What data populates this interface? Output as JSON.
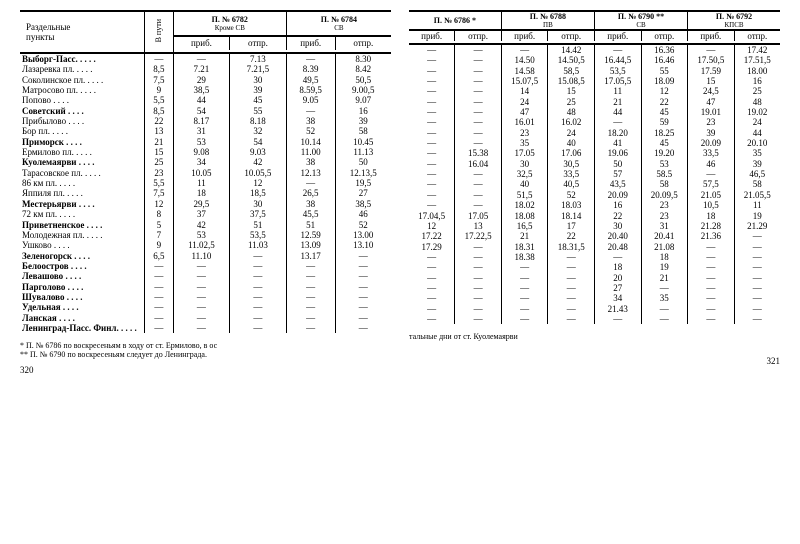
{
  "font_family": "Times New Roman",
  "text_color": "#000000",
  "background_color": "#ffffff",
  "header": {
    "stations_label": "Раздельные\nпункты",
    "time_label": "В пути",
    "arr": "приб.",
    "dep": "отпр."
  },
  "trains_left": [
    {
      "title": "П. № 6782",
      "sub": "Кроме СВ"
    },
    {
      "title": "П. № 6784",
      "sub": "СВ"
    }
  ],
  "trains_right": [
    {
      "title": "П. № 6786 *",
      "sub": ""
    },
    {
      "title": "П. № 6788",
      "sub": "ПВ"
    },
    {
      "title": "П. № 6790 **",
      "sub": "СВ"
    },
    {
      "title": "П. № 6792",
      "sub": "КПСВ"
    }
  ],
  "stations": [
    "Выборг-Пасс.",
    "Лазаревка пл.",
    "Соколинское пл.",
    "Матросово пл.",
    "Попово",
    "Советский",
    "Прибылово",
    "Бор пл.",
    "Приморск",
    "Ермилово пл.",
    "Куолемаярви",
    "Тарасовское пл.",
    "86 км пл.",
    "Яппиля пл.",
    "Местерьярви",
    "72 км пл.",
    "Приветненское",
    "Молодежная пл.",
    "Ушково",
    "Зеленогорск",
    "Белоостров",
    "Левашово",
    "Парголово",
    "Шувалово",
    "Удельная",
    "Ланская",
    "Ленинград-Пасс. Финл."
  ],
  "time_col": [
    "—",
    "8,5",
    "7,5",
    "9",
    "5,5",
    "8,5",
    "22",
    "13",
    "21",
    "15",
    "25",
    "23",
    "5,5",
    "7,5",
    "12",
    "8",
    "5",
    "7",
    "9",
    "6,5",
    "—",
    "—",
    "—",
    "—",
    "—",
    "—",
    "—"
  ],
  "t6782_a": [
    "—",
    "7.21",
    "29",
    "38,5",
    "44",
    "54",
    "8.17",
    "31",
    "53",
    "9.08",
    "34",
    "10.05",
    "11",
    "18",
    "29,5",
    "37",
    "42",
    "53",
    "11.02,5",
    "11.10",
    "—",
    "—",
    "—",
    "—",
    "—",
    "—",
    "—"
  ],
  "t6782_d": [
    "7.13",
    "7.21,5",
    "30",
    "39",
    "45",
    "55",
    "8.18",
    "32",
    "54",
    "9.03",
    "42",
    "10.05,5",
    "12",
    "18,5",
    "30",
    "37,5",
    "51",
    "53,5",
    "11.03",
    "—",
    "—",
    "—",
    "—",
    "—",
    "—",
    "—",
    "—"
  ],
  "t6784_a": [
    "—",
    "8.39",
    "49,5",
    "8.59,5",
    "9.05",
    "—",
    "38",
    "52",
    "10.14",
    "11.00",
    "38",
    "12.13",
    "—",
    "26,5",
    "38",
    "45,5",
    "51",
    "12.59",
    "13.09",
    "13.17",
    "—",
    "—",
    "—",
    "—",
    "—",
    "—",
    "—"
  ],
  "t6784_d": [
    "8.30",
    "8.42",
    "50,5",
    "9.00,5",
    "9.07",
    "16",
    "39",
    "58",
    "10.45",
    "11.13",
    "50",
    "12.13,5",
    "19,5",
    "27",
    "38,5",
    "46",
    "52",
    "13.00",
    "13.10",
    "—",
    "—",
    "—",
    "—",
    "—",
    "—",
    "—",
    "—"
  ],
  "t6786_a": [
    "—",
    "—",
    "—",
    "—",
    "—",
    "—",
    "—",
    "—",
    "—",
    "—",
    "—",
    "—",
    "—",
    "—",
    "—",
    "—",
    "17.04,5",
    "12",
    "17.22",
    "17.29",
    "—",
    "—",
    "—",
    "—",
    "—",
    "—",
    "—"
  ],
  "t6786_d": [
    "—",
    "—",
    "—",
    "—",
    "—",
    "—",
    "—",
    "—",
    "—",
    "—",
    "15.38",
    "16.04",
    "—",
    "—",
    "—",
    "—",
    "17.05",
    "13",
    "17.22,5",
    "—",
    "—",
    "—",
    "—",
    "—",
    "—",
    "—",
    "—"
  ],
  "t6788_a": [
    "—",
    "14.50",
    "14.58",
    "15.07,5",
    "14",
    "24",
    "47",
    "16.01",
    "23",
    "35",
    "17.05",
    "30",
    "32,5",
    "40",
    "51,5",
    "18.02",
    "18.08",
    "16,5",
    "21",
    "18.31",
    "18.38",
    "—",
    "—",
    "—",
    "—",
    "—",
    "—"
  ],
  "t6788_d": [
    "14.42",
    "14.50,5",
    "58,5",
    "15.08,5",
    "15",
    "25",
    "48",
    "16.02",
    "24",
    "40",
    "17.06",
    "30,5",
    "33,5",
    "40,5",
    "52",
    "18.03",
    "18.14",
    "17",
    "22",
    "18.31,5",
    "—",
    "—",
    "—",
    "—",
    "—",
    "—",
    "—"
  ],
  "t6790_a": [
    "—",
    "16.44,5",
    "53,5",
    "17.05,5",
    "11",
    "21",
    "44",
    "—",
    "18.20",
    "41",
    "19.06",
    "50",
    "57",
    "43,5",
    "20.09",
    "16",
    "22",
    "30",
    "20.40",
    "20.48",
    "—",
    "18",
    "20",
    "27",
    "34",
    "21.43",
    "—"
  ],
  "t6790_d": [
    "16.36",
    "16.46",
    "55",
    "18.09",
    "12",
    "22",
    "45",
    "59",
    "18.25",
    "45",
    "19.20",
    "53",
    "58.5",
    "58",
    "20.09,5",
    "23",
    "23",
    "31",
    "20.41",
    "21.08",
    "18",
    "19",
    "21",
    "—",
    "35",
    "—",
    "—"
  ],
  "t6792_a": [
    "—",
    "17.50,5",
    "17.59",
    "15",
    "24,5",
    "47",
    "19.01",
    "23",
    "39",
    "20.09",
    "33,5",
    "46",
    "—",
    "57,5",
    "21.05",
    "10,5",
    "18",
    "21.28",
    "21.36",
    "—",
    "—",
    "—",
    "—",
    "—",
    "—",
    "—",
    "—"
  ],
  "t6792_d": [
    "17.42",
    "17.51,5",
    "18.00",
    "16",
    "25",
    "48",
    "19.02",
    "24",
    "44",
    "20.10",
    "35",
    "39",
    "46,5",
    "58",
    "21.05,5",
    "11",
    "19",
    "21.29",
    "—",
    "—",
    "—",
    "—",
    "—",
    "—",
    "—",
    "—",
    "—"
  ],
  "footnotes": {
    "f1": "* П. № 6786 по воскресеньям в ходу от ст. Ермилово, в ос",
    "f2": "** П. № 6790 по воскресеньям следует до Ленинграда.",
    "f_right": "тальные дни от ст. Куолемаярви"
  },
  "page_left": "320",
  "page_right": "321"
}
